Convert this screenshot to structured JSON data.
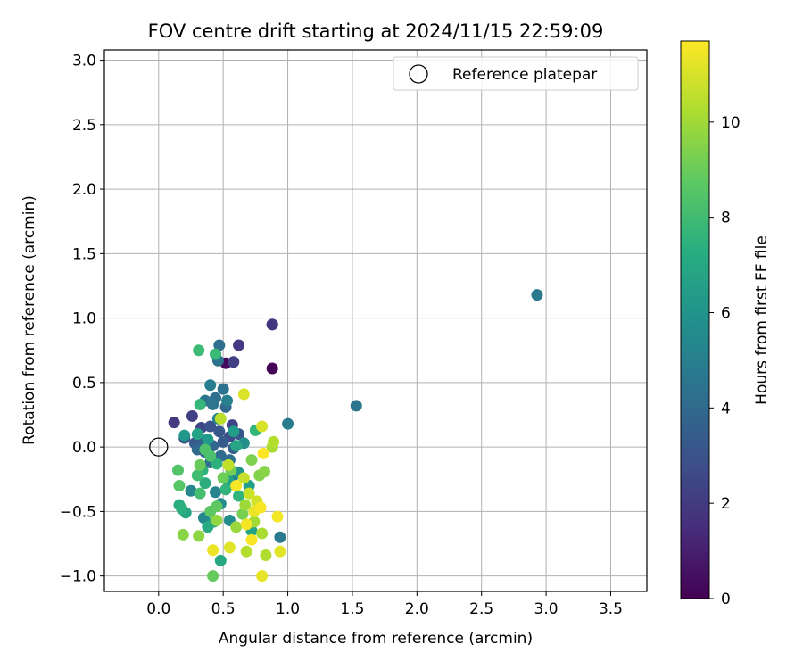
{
  "chart_data": {
    "type": "scatter",
    "title": "FOV centre drift starting at 2024/11/15 22:59:09",
    "xlabel": "Angular distance from reference (arcmin)",
    "ylabel": "Rotation from reference (arcmin)",
    "xlim": [
      -0.42,
      3.78
    ],
    "ylim": [
      -1.12,
      3.08
    ],
    "xticks": [
      0.0,
      0.5,
      1.0,
      1.5,
      2.0,
      2.5,
      3.0,
      3.5
    ],
    "xtick_labels": [
      "0.0",
      "0.5",
      "1.0",
      "1.5",
      "2.0",
      "2.5",
      "3.0",
      "3.5"
    ],
    "yticks": [
      -1.0,
      -0.5,
      0.0,
      0.5,
      1.0,
      1.5,
      2.0,
      2.5,
      3.0
    ],
    "ytick_labels": [
      "−1.0",
      "−0.5",
      "0.0",
      "0.5",
      "1.0",
      "1.5",
      "2.0",
      "2.5",
      "3.0"
    ],
    "grid": true,
    "legend": {
      "placement": "top-right",
      "label": "Reference platepar"
    },
    "reference_point": {
      "x": 0.0,
      "y": 0.0
    },
    "colorbar": {
      "label": "Hours from first FF file",
      "colormap": "viridis",
      "range": [
        0,
        11.7
      ],
      "ticks": [
        0,
        2,
        4,
        6,
        8,
        10
      ],
      "tick_labels": [
        "0",
        "2",
        "4",
        "6",
        "8",
        "10"
      ]
    },
    "points": [
      {
        "x": 0.88,
        "y": 0.61,
        "c": 0.1
      },
      {
        "x": 0.52,
        "y": 0.65,
        "c": 0.3
      },
      {
        "x": 0.88,
        "y": 0.95,
        "c": 1.5
      },
      {
        "x": 0.88,
        "y": 0.95,
        "c": 1.8
      },
      {
        "x": 0.62,
        "y": 0.79,
        "c": 2.0
      },
      {
        "x": 0.58,
        "y": 0.66,
        "c": 2.2
      },
      {
        "x": 0.12,
        "y": 0.19,
        "c": 2.0
      },
      {
        "x": 0.26,
        "y": 0.24,
        "c": 2.2
      },
      {
        "x": 0.57,
        "y": 0.17,
        "c": 2.3
      },
      {
        "x": 0.33,
        "y": 0.15,
        "c": 2.5
      },
      {
        "x": 0.2,
        "y": 0.07,
        "c": 2.8
      },
      {
        "x": 0.55,
        "y": 0.08,
        "c": 2.6
      },
      {
        "x": 0.4,
        "y": 0.16,
        "c": 3.0
      },
      {
        "x": 0.47,
        "y": 0.12,
        "c": 3.2
      },
      {
        "x": 0.62,
        "y": 0.1,
        "c": 3.1
      },
      {
        "x": 0.28,
        "y": 0.03,
        "c": 3.4
      },
      {
        "x": 0.35,
        "y": 0.05,
        "c": 3.6
      },
      {
        "x": 0.5,
        "y": 0.04,
        "c": 3.3
      },
      {
        "x": 0.42,
        "y": 0.01,
        "c": 3.8
      },
      {
        "x": 0.58,
        "y": -0.01,
        "c": 3.5
      },
      {
        "x": 0.3,
        "y": -0.02,
        "c": 3.9
      },
      {
        "x": 0.36,
        "y": -0.04,
        "c": 4.0
      },
      {
        "x": 0.48,
        "y": -0.07,
        "c": 4.1
      },
      {
        "x": 0.55,
        "y": -0.1,
        "c": 4.2
      },
      {
        "x": 0.4,
        "y": -0.12,
        "c": 4.3
      },
      {
        "x": 0.52,
        "y": 0.31,
        "c": 4.0
      },
      {
        "x": 0.44,
        "y": 0.38,
        "c": 4.2
      },
      {
        "x": 0.5,
        "y": 0.45,
        "c": 4.4
      },
      {
        "x": 0.36,
        "y": 0.36,
        "c": 4.5
      },
      {
        "x": 0.42,
        "y": 0.33,
        "c": 4.6
      },
      {
        "x": 0.47,
        "y": 0.79,
        "c": 4.2
      },
      {
        "x": 0.46,
        "y": 0.67,
        "c": 4.5
      },
      {
        "x": 1.53,
        "y": 0.32,
        "c": 4.6
      },
      {
        "x": 2.93,
        "y": 1.18,
        "c": 4.8
      },
      {
        "x": 1.0,
        "y": 0.18,
        "c": 4.9
      },
      {
        "x": 0.94,
        "y": -0.7,
        "c": 4.8
      },
      {
        "x": 0.4,
        "y": 0.48,
        "c": 5.0
      },
      {
        "x": 0.53,
        "y": 0.36,
        "c": 5.1
      },
      {
        "x": 0.46,
        "y": 0.22,
        "c": 5.2
      },
      {
        "x": 0.58,
        "y": -0.22,
        "c": 5.0
      },
      {
        "x": 0.44,
        "y": -0.35,
        "c": 5.3
      },
      {
        "x": 0.25,
        "y": -0.34,
        "c": 5.4
      },
      {
        "x": 0.35,
        "y": -0.55,
        "c": 5.5
      },
      {
        "x": 0.55,
        "y": -0.57,
        "c": 5.6
      },
      {
        "x": 0.48,
        "y": -0.44,
        "c": 5.7
      },
      {
        "x": 0.66,
        "y": 0.03,
        "c": 5.8
      },
      {
        "x": 0.62,
        "y": -0.2,
        "c": 6.0
      },
      {
        "x": 0.2,
        "y": 0.09,
        "c": 6.2
      },
      {
        "x": 0.38,
        "y": 0.06,
        "c": 6.3
      },
      {
        "x": 0.58,
        "y": 0.12,
        "c": 6.4
      },
      {
        "x": 0.7,
        "y": -0.3,
        "c": 6.5
      },
      {
        "x": 0.54,
        "y": -0.26,
        "c": 6.6
      },
      {
        "x": 0.3,
        "y": 0.1,
        "c": 6.8
      },
      {
        "x": 0.6,
        "y": 0.01,
        "c": 6.9
      },
      {
        "x": 0.72,
        "y": -0.65,
        "c": 6.7
      },
      {
        "x": 0.21,
        "y": -0.51,
        "c": 6.9
      },
      {
        "x": 0.43,
        "y": -0.58,
        "c": 7.0
      },
      {
        "x": 0.38,
        "y": -0.62,
        "c": 7.1
      },
      {
        "x": 0.48,
        "y": -0.88,
        "c": 7.0
      },
      {
        "x": 0.16,
        "y": -0.45,
        "c": 7.2
      },
      {
        "x": 0.18,
        "y": -0.48,
        "c": 7.4
      },
      {
        "x": 0.36,
        "y": -0.28,
        "c": 7.3
      },
      {
        "x": 0.45,
        "y": -0.13,
        "c": 7.4
      },
      {
        "x": 0.34,
        "y": -0.18,
        "c": 7.5
      },
      {
        "x": 0.52,
        "y": -0.33,
        "c": 7.6
      },
      {
        "x": 0.62,
        "y": -0.38,
        "c": 7.6
      },
      {
        "x": 0.75,
        "y": 0.13,
        "c": 7.7
      },
      {
        "x": 0.32,
        "y": 0.33,
        "c": 7.8
      },
      {
        "x": 0.44,
        "y": 0.72,
        "c": 7.9
      },
      {
        "x": 0.31,
        "y": 0.75,
        "c": 8.0
      },
      {
        "x": 0.3,
        "y": -0.22,
        "c": 8.1
      },
      {
        "x": 0.32,
        "y": -0.36,
        "c": 8.2
      },
      {
        "x": 0.4,
        "y": -0.07,
        "c": 8.3
      },
      {
        "x": 0.36,
        "y": -0.02,
        "c": 8.4
      },
      {
        "x": 0.15,
        "y": -0.18,
        "c": 8.5
      },
      {
        "x": 0.16,
        "y": -0.3,
        "c": 8.6
      },
      {
        "x": 0.4,
        "y": -0.5,
        "c": 8.7
      },
      {
        "x": 0.45,
        "y": -0.46,
        "c": 8.8
      },
      {
        "x": 0.42,
        "y": -1.0,
        "c": 8.9
      },
      {
        "x": 0.32,
        "y": -0.14,
        "c": 9.0
      },
      {
        "x": 0.5,
        "y": -0.24,
        "c": 9.1
      },
      {
        "x": 0.56,
        "y": -0.18,
        "c": 9.2
      },
      {
        "x": 0.65,
        "y": -0.52,
        "c": 9.3
      },
      {
        "x": 0.72,
        "y": -0.1,
        "c": 9.4
      },
      {
        "x": 0.78,
        "y": -0.22,
        "c": 9.5
      },
      {
        "x": 0.82,
        "y": -0.19,
        "c": 9.6
      },
      {
        "x": 0.19,
        "y": -0.68,
        "c": 9.6
      },
      {
        "x": 0.31,
        "y": -0.69,
        "c": 9.7
      },
      {
        "x": 0.45,
        "y": -0.57,
        "c": 9.8
      },
      {
        "x": 0.6,
        "y": -0.62,
        "c": 9.9
      },
      {
        "x": 0.67,
        "y": -0.45,
        "c": 10.0
      },
      {
        "x": 0.74,
        "y": -0.58,
        "c": 10.1
      },
      {
        "x": 0.8,
        "y": -0.67,
        "c": 10.2
      },
      {
        "x": 0.83,
        "y": -0.84,
        "c": 10.3
      },
      {
        "x": 0.68,
        "y": -0.81,
        "c": 10.4
      },
      {
        "x": 0.88,
        "y": 0.0,
        "c": 10.2
      },
      {
        "x": 0.89,
        "y": 0.04,
        "c": 10.4
      },
      {
        "x": 0.48,
        "y": 0.22,
        "c": 10.5
      },
      {
        "x": 0.54,
        "y": -0.14,
        "c": 10.6
      },
      {
        "x": 0.66,
        "y": -0.24,
        "c": 10.7
      },
      {
        "x": 0.7,
        "y": -0.36,
        "c": 10.8
      },
      {
        "x": 0.76,
        "y": -0.42,
        "c": 10.9
      },
      {
        "x": 0.8,
        "y": 0.16,
        "c": 11.0
      },
      {
        "x": 0.66,
        "y": 0.41,
        "c": 11.1
      },
      {
        "x": 0.94,
        "y": -0.81,
        "c": 11.2
      },
      {
        "x": 0.8,
        "y": -1.0,
        "c": 11.3
      },
      {
        "x": 0.55,
        "y": -0.78,
        "c": 11.2
      },
      {
        "x": 0.42,
        "y": -0.8,
        "c": 11.4
      },
      {
        "x": 0.74,
        "y": -0.5,
        "c": 11.4
      },
      {
        "x": 0.92,
        "y": -0.54,
        "c": 11.5
      },
      {
        "x": 0.79,
        "y": -0.47,
        "c": 11.6
      },
      {
        "x": 0.68,
        "y": -0.6,
        "c": 11.5
      },
      {
        "x": 0.72,
        "y": -0.72,
        "c": 11.6
      },
      {
        "x": 0.6,
        "y": -0.3,
        "c": 11.6
      },
      {
        "x": 0.81,
        "y": -0.05,
        "c": 11.7
      }
    ]
  }
}
